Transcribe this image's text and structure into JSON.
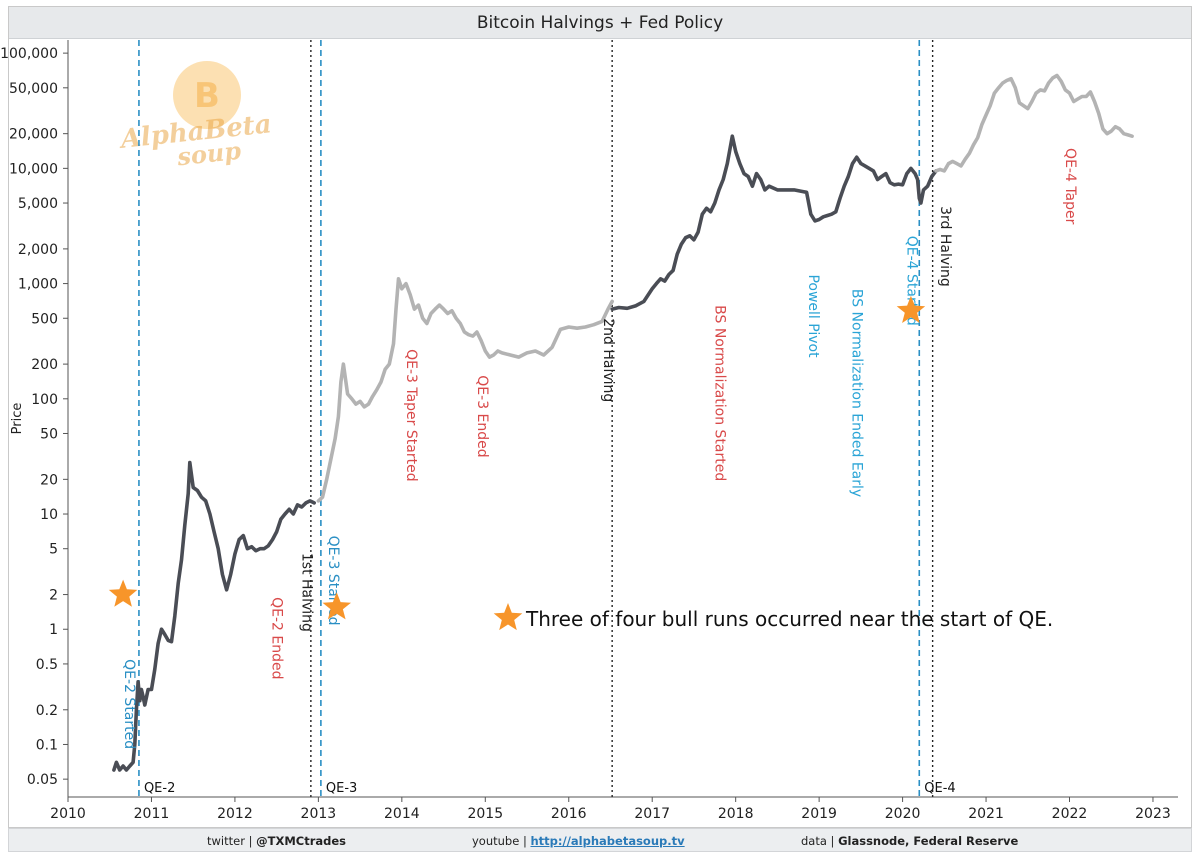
{
  "header": {
    "title": "Bitcoin Halvings + Fed Policy"
  },
  "footer": {
    "twitter_label": "twitter |",
    "twitter_handle": "@TXMCtrades",
    "youtube_label": "youtube |",
    "youtube_url": "http://alphabetasoup.tv",
    "data_label": "data |",
    "data_source": "Glassnode, Federal Reserve"
  },
  "logo": {
    "line1": "AlphaBeta",
    "line2": "soup",
    "badge": "B"
  },
  "colors": {
    "qe": "#2a8fc4",
    "halving": "#222222",
    "taper": "#d94a4a",
    "pivot": "#2aa4d6",
    "star": "#f7952a",
    "dark_line": "#4a4d55",
    "light_line": "#b3b3b3"
  },
  "chart_data": {
    "type": "line",
    "title": "Bitcoin Halvings + Fed Policy",
    "ylabel": "Price",
    "xlabel": "",
    "yscale": "log",
    "ylim": [
      0.035,
      130000
    ],
    "xlim": [
      2010.0,
      2023.3
    ],
    "yticks": [
      {
        "value": 0.05,
        "label": "0.05"
      },
      {
        "value": 0.1,
        "label": "0.1"
      },
      {
        "value": 0.2,
        "label": "0.2"
      },
      {
        "value": 0.5,
        "label": "0.5"
      },
      {
        "value": 1,
        "label": "1"
      },
      {
        "value": 2,
        "label": "2"
      },
      {
        "value": 5,
        "label": "5"
      },
      {
        "value": 10,
        "label": "10"
      },
      {
        "value": 20,
        "label": "20"
      },
      {
        "value": 50,
        "label": "50"
      },
      {
        "value": 100,
        "label": "100"
      },
      {
        "value": 200,
        "label": "200"
      },
      {
        "value": 500,
        "label": "500"
      },
      {
        "value": 1000,
        "label": "1,000"
      },
      {
        "value": 2000,
        "label": "2,000"
      },
      {
        "value": 5000,
        "label": "5,000"
      },
      {
        "value": 10000,
        "label": "10,000"
      },
      {
        "value": 20000,
        "label": "20,000"
      },
      {
        "value": 50000,
        "label": "50,000"
      },
      {
        "value": 100000,
        "label": "100,000"
      }
    ],
    "xticks": [
      {
        "value": 2010,
        "label": "2010"
      },
      {
        "value": 2011,
        "label": "2011"
      },
      {
        "value": 2012,
        "label": "2012"
      },
      {
        "value": 2013,
        "label": "2013"
      },
      {
        "value": 2014,
        "label": "2014"
      },
      {
        "value": 2015,
        "label": "2015"
      },
      {
        "value": 2016,
        "label": "2016"
      },
      {
        "value": 2017,
        "label": "2017"
      },
      {
        "value": 2018,
        "label": "2018"
      },
      {
        "value": 2019,
        "label": "2019"
      },
      {
        "value": 2020,
        "label": "2020"
      },
      {
        "value": 2021,
        "label": "2021"
      },
      {
        "value": 2022,
        "label": "2022"
      },
      {
        "value": 2023,
        "label": "2023"
      }
    ],
    "series": [
      {
        "name": "price_dark_1",
        "shade": "dark",
        "x": [
          2010.55,
          2010.58,
          2010.62,
          2010.66,
          2010.7,
          2010.74,
          2010.78,
          2010.8,
          2010.82,
          2010.84,
          2010.86,
          2010.88,
          2010.9,
          2010.92,
          2010.96,
          2011.0,
          2011.04,
          2011.08,
          2011.12,
          2011.16,
          2011.2,
          2011.24,
          2011.28,
          2011.32,
          2011.36,
          2011.4,
          2011.44,
          2011.46,
          2011.5,
          2011.55,
          2011.6,
          2011.65,
          2011.7,
          2011.75,
          2011.8,
          2011.85,
          2011.9,
          2011.95,
          2012.0,
          2012.05,
          2012.1,
          2012.15,
          2012.2,
          2012.25,
          2012.3,
          2012.35,
          2012.4,
          2012.45,
          2012.5,
          2012.55,
          2012.6,
          2012.65,
          2012.7,
          2012.75,
          2012.8,
          2012.85,
          2012.9,
          2012.95
        ],
        "values": [
          0.06,
          0.07,
          0.06,
          0.065,
          0.06,
          0.065,
          0.07,
          0.1,
          0.2,
          0.35,
          0.24,
          0.3,
          0.26,
          0.22,
          0.3,
          0.3,
          0.45,
          0.75,
          1.0,
          0.9,
          0.8,
          0.78,
          1.3,
          2.5,
          4,
          8,
          15,
          28,
          17,
          16,
          14,
          13,
          10,
          7,
          5,
          3,
          2.2,
          3,
          4.5,
          6,
          6.5,
          5,
          5.2,
          4.8,
          5,
          5,
          5.3,
          6,
          7,
          9,
          10,
          11,
          10,
          12,
          11.5,
          12.5,
          13,
          12.5
        ]
      },
      {
        "name": "price_light_1",
        "shade": "light",
        "x": [
          2013.0,
          2013.05,
          2013.1,
          2013.15,
          2013.2,
          2013.24,
          2013.27,
          2013.3,
          2013.35,
          2013.4,
          2013.45,
          2013.5,
          2013.55,
          2013.6,
          2013.65,
          2013.7,
          2013.75,
          2013.8,
          2013.85,
          2013.9,
          2013.93,
          2013.96,
          2014.0,
          2014.05,
          2014.1,
          2014.15,
          2014.2,
          2014.25,
          2014.3,
          2014.35,
          2014.4,
          2014.45,
          2014.5,
          2014.55,
          2014.6,
          2014.65,
          2014.7,
          2014.75,
          2014.8,
          2014.85,
          2014.9,
          2014.95,
          2015.0,
          2015.05,
          2015.1,
          2015.15,
          2015.2,
          2015.3,
          2015.4,
          2015.5,
          2015.6,
          2015.7,
          2015.8,
          2015.9,
          2016.0,
          2016.1,
          2016.2,
          2016.3,
          2016.4,
          2016.47,
          2016.52
        ],
        "values": [
          13,
          14,
          20,
          30,
          45,
          70,
          140,
          200,
          110,
          100,
          90,
          95,
          85,
          90,
          105,
          120,
          140,
          180,
          200,
          300,
          600,
          1100,
          900,
          1000,
          800,
          600,
          650,
          500,
          450,
          550,
          600,
          650,
          600,
          550,
          580,
          500,
          450,
          380,
          360,
          350,
          380,
          320,
          260,
          230,
          240,
          260,
          250,
          240,
          230,
          250,
          260,
          240,
          280,
          400,
          420,
          410,
          420,
          440,
          470,
          600,
          700
        ]
      },
      {
        "name": "price_dark_2",
        "shade": "dark",
        "x": [
          2016.52,
          2016.6,
          2016.7,
          2016.8,
          2016.9,
          2017.0,
          2017.05,
          2017.1,
          2017.15,
          2017.2,
          2017.25,
          2017.3,
          2017.35,
          2017.4,
          2017.45,
          2017.5,
          2017.55,
          2017.6,
          2017.65,
          2017.7,
          2017.75,
          2017.8,
          2017.85,
          2017.9,
          2017.96,
          2018.0,
          2018.05,
          2018.1,
          2018.15,
          2018.2,
          2018.25,
          2018.3,
          2018.35,
          2018.4,
          2018.5,
          2018.6,
          2018.7,
          2018.8,
          2018.85,
          2018.9,
          2018.95,
          2019.0,
          2019.05,
          2019.1,
          2019.15,
          2019.2,
          2019.25,
          2019.3,
          2019.35,
          2019.4,
          2019.45,
          2019.5,
          2019.55,
          2019.6,
          2019.65,
          2019.7,
          2019.75,
          2019.8,
          2019.85,
          2019.9,
          2019.95,
          2020.0,
          2020.05,
          2020.1,
          2020.15,
          2020.18,
          2020.2,
          2020.22,
          2020.25,
          2020.3,
          2020.35,
          2020.4
        ],
        "values": [
          600,
          620,
          610,
          640,
          700,
          900,
          1000,
          1100,
          1050,
          1200,
          1300,
          1800,
          2200,
          2500,
          2600,
          2400,
          2800,
          4000,
          4500,
          4200,
          5000,
          6500,
          8000,
          11000,
          19000,
          14000,
          11000,
          9000,
          8500,
          7000,
          9000,
          8000,
          6500,
          7000,
          6500,
          6500,
          6500,
          6300,
          6200,
          4000,
          3500,
          3600,
          3800,
          3900,
          4000,
          4200,
          5500,
          7000,
          8500,
          11000,
          12500,
          11000,
          10500,
          10000,
          9500,
          8000,
          8500,
          9000,
          7500,
          7200,
          7300,
          7200,
          9000,
          10000,
          9000,
          8000,
          5500,
          5000,
          6500,
          7000,
          8500,
          9500
        ]
      },
      {
        "name": "price_light_2",
        "shade": "light",
        "x": [
          2020.4,
          2020.45,
          2020.5,
          2020.55,
          2020.6,
          2020.65,
          2020.7,
          2020.75,
          2020.8,
          2020.85,
          2020.9,
          2020.95,
          2021.0,
          2021.05,
          2021.1,
          2021.15,
          2021.2,
          2021.25,
          2021.3,
          2021.35,
          2021.4,
          2021.45,
          2021.5,
          2021.55,
          2021.6,
          2021.65,
          2021.7,
          2021.75,
          2021.8,
          2021.85,
          2021.9,
          2021.95,
          2022.0,
          2022.05,
          2022.1,
          2022.15,
          2022.2,
          2022.25,
          2022.3,
          2022.35,
          2022.4,
          2022.45,
          2022.5,
          2022.55,
          2022.6,
          2022.65,
          2022.7,
          2022.75
        ],
        "values": [
          9500,
          9800,
          9500,
          11000,
          11500,
          11000,
          10500,
          12000,
          13500,
          16000,
          18500,
          24000,
          29000,
          35000,
          45000,
          50000,
          55000,
          58000,
          60000,
          50000,
          37000,
          35000,
          33000,
          38000,
          45000,
          48000,
          47000,
          55000,
          61000,
          64000,
          57000,
          48000,
          45000,
          38000,
          40000,
          42000,
          42000,
          46000,
          38000,
          30000,
          22000,
          20000,
          21000,
          23000,
          22000,
          20000,
          19500,
          19000
        ]
      }
    ],
    "vlines": [
      {
        "name": "qe-2",
        "x": 2010.85,
        "kind": "qe",
        "label": "QE-2"
      },
      {
        "name": "1st-halving",
        "x": 2012.91,
        "kind": "halving"
      },
      {
        "name": "qe-3",
        "x": 2013.03,
        "kind": "qe",
        "label": "QE-3"
      },
      {
        "name": "2nd-halving",
        "x": 2016.52,
        "kind": "halving"
      },
      {
        "name": "qe-4",
        "x": 2020.2,
        "kind": "qe",
        "label": "QE-4"
      },
      {
        "name": "3rd-halving",
        "x": 2020.36,
        "kind": "halving"
      }
    ],
    "annotations": [
      {
        "text": "QE-2 Started",
        "x": 2010.68,
        "y": 0.55,
        "kind": "qe"
      },
      {
        "text": "QE-2 Ended",
        "x": 2012.45,
        "y": 1.9,
        "kind": "taper"
      },
      {
        "text": "1st Halving",
        "x": 2012.81,
        "y": 4.6,
        "kind": "halving"
      },
      {
        "text": "QE-3 Started",
        "x": 2013.13,
        "y": 6.5,
        "kind": "qe"
      },
      {
        "text": "QE-3 Taper Started",
        "x": 2014.06,
        "y": 270,
        "kind": "taper"
      },
      {
        "text": "QE-3 Ended",
        "x": 2014.91,
        "y": 160,
        "kind": "taper"
      },
      {
        "text": "2nd Halving",
        "x": 2016.42,
        "y": 500,
        "kind": "halving"
      },
      {
        "text": "BS Normalization Started",
        "x": 2017.76,
        "y": 650,
        "kind": "taper"
      },
      {
        "text": "Powell Pivot",
        "x": 2018.88,
        "y": 1200,
        "kind": "pivot"
      },
      {
        "text": "BS Normalization Ended Early",
        "x": 2019.4,
        "y": 900,
        "kind": "pivot"
      },
      {
        "text": "QE-4 Started",
        "x": 2020.06,
        "y": 2600,
        "kind": "pivot"
      },
      {
        "text": "3rd Halving",
        "x": 2020.46,
        "y": 4700,
        "kind": "halving"
      },
      {
        "text": "QE-4 Taper",
        "x": 2021.96,
        "y": 15000,
        "kind": "taper"
      }
    ],
    "stars": [
      {
        "name": "star-qe2",
        "x": 2010.66,
        "y": 2
      },
      {
        "name": "star-qe3",
        "x": 2013.22,
        "y": 1.55
      },
      {
        "name": "star-qe4",
        "x": 2020.1,
        "y": 580
      }
    ],
    "legend": {
      "text": "Three of four bull runs occurred near the start of QE.",
      "position": "center-bottom"
    }
  }
}
